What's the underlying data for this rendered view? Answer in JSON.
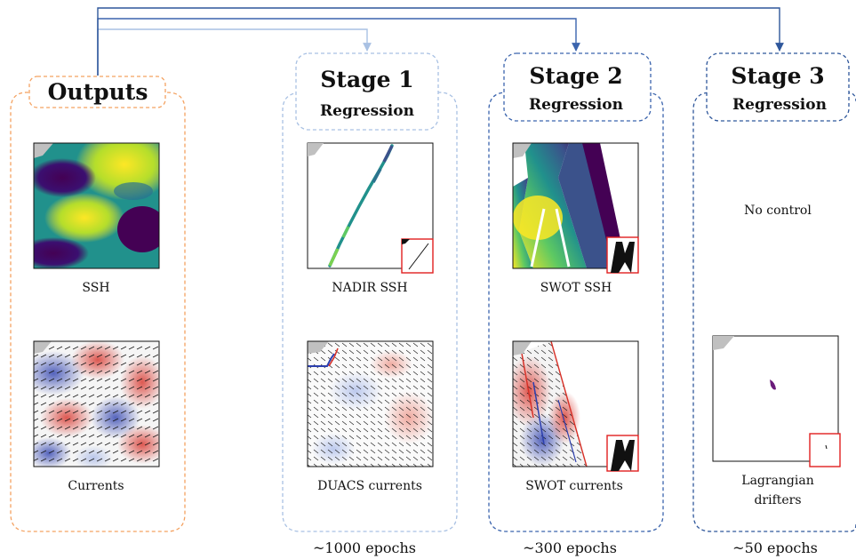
{
  "outputs": {
    "title": "Outputs",
    "ssh_caption": "SSH",
    "currents_caption": "Currents",
    "color": "#f4a261"
  },
  "stage1": {
    "title": "Stage 1",
    "subtitle": "Regression",
    "ssh_caption": "NADIR SSH",
    "currents_caption": "DUACS currents",
    "epochs": "~1000 epochs",
    "color": "#a9c1e3"
  },
  "stage2": {
    "title": "Stage 2",
    "subtitle": "Regression",
    "ssh_caption": "SWOT SSH",
    "currents_caption": "SWOT currents",
    "epochs": "~300 epochs",
    "color": "#3b64ad"
  },
  "stage3": {
    "title": "Stage 3",
    "subtitle": "Regression",
    "ssh_caption": "No control",
    "currents_caption_line1": "Lagrangian",
    "currents_caption_line2": "drifters",
    "epochs": "~50 epochs",
    "color": "#2f579b"
  },
  "colors": {
    "land": "#c0c0c0",
    "ssh_high": "#fde725",
    "ssh_mid": "#21918c",
    "ssh_low": "#440154",
    "current_pos": "#d73027",
    "current_neg": "#2c3fae",
    "inset_border": "#e02020"
  }
}
